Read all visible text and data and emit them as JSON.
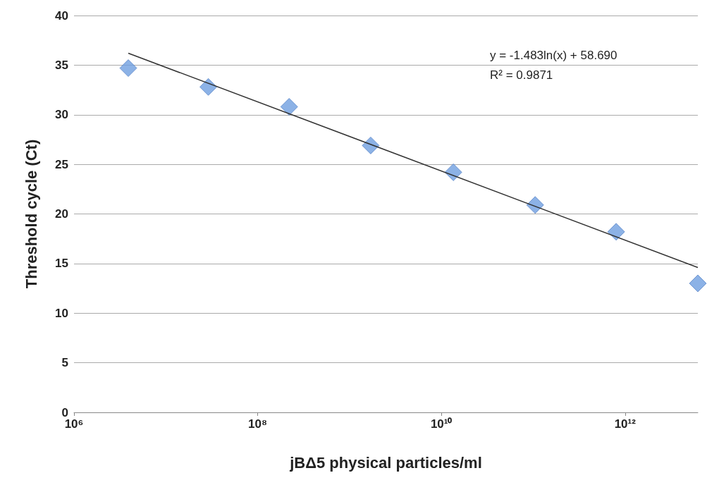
{
  "chart_data": {
    "type": "scatter",
    "xlabel": "jBΔ5 physical particles/ml",
    "ylabel": "Threshold cycle (Ct)",
    "log": "x",
    "grid": "y",
    "marker": "diamond",
    "xlim": [
      1000000,
      6200000000000
    ],
    "xticks": [
      {
        "value": 1000000,
        "label": "10⁶"
      },
      {
        "value": 100000000,
        "label": "10⁸"
      },
      {
        "value": 10000000000,
        "label": "10¹⁰"
      },
      {
        "value": 1000000000000,
        "label": "10¹²"
      }
    ],
    "ylim": [
      0,
      40
    ],
    "yticks": [
      0,
      5,
      10,
      15,
      20,
      25,
      30,
      35,
      40
    ],
    "x": [
      3900000,
      29000000,
      220000000,
      1700000000,
      13500000000,
      105000000000,
      800000000000,
      6200000000000
    ],
    "series": [
      {
        "color": "#6f9fe0",
        "values": [
          34.7,
          32.8,
          30.8,
          26.9,
          24.2,
          20.9,
          18.2,
          13.0
        ]
      },
      {
        "type": "line",
        "color": "#333333",
        "marker": "none",
        "x": [
          3900000,
          6200000000000
        ],
        "values": [
          36.2,
          14.6
        ]
      }
    ],
    "annotations": [
      "y = -1.483ln(x) + 58.690",
      "R² = 0.9871"
    ]
  }
}
